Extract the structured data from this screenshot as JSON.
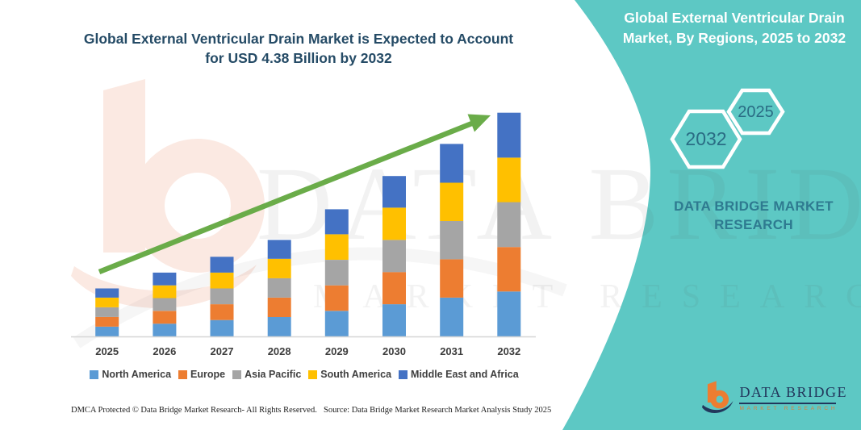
{
  "header": {
    "left_title": "Global External Ventricular Drain Market is Expected to Account for USD 4.38 Billion by 2032",
    "right_title": "Global External Ventricular Drain Market, By Regions, 2025 to 2032"
  },
  "side_panel": {
    "accent_teal": "#5dc8c4",
    "hexagons": [
      {
        "label": "2032"
      },
      {
        "label": "2025"
      }
    ],
    "brand_text": "DATA BRIDGE MARKET RESEARCH"
  },
  "chart_data": {
    "type": "bar",
    "stacked": true,
    "unit": "USD Billion",
    "categories": [
      "2025",
      "2026",
      "2027",
      "2028",
      "2029",
      "2030",
      "2031",
      "2032"
    ],
    "series": [
      {
        "name": "North America",
        "color": "#5B9BD5",
        "values": [
          0.19,
          0.25,
          0.32,
          0.38,
          0.5,
          0.63,
          0.76,
          0.88
        ]
      },
      {
        "name": "Europe",
        "color": "#ED7D31",
        "values": [
          0.19,
          0.25,
          0.31,
          0.38,
          0.5,
          0.63,
          0.75,
          0.87
        ]
      },
      {
        "name": "Asia Pacific",
        "color": "#A5A5A5",
        "values": [
          0.19,
          0.25,
          0.31,
          0.38,
          0.5,
          0.63,
          0.75,
          0.88
        ]
      },
      {
        "name": "South America",
        "color": "#FFC000",
        "values": [
          0.19,
          0.25,
          0.31,
          0.38,
          0.5,
          0.63,
          0.75,
          0.87
        ]
      },
      {
        "name": "Middle East and Africa",
        "color": "#4472C4",
        "values": [
          0.18,
          0.25,
          0.31,
          0.37,
          0.49,
          0.62,
          0.76,
          0.88
        ]
      }
    ],
    "totals": [
      0.94,
      1.25,
      1.56,
      1.89,
      2.49,
      3.14,
      3.77,
      4.38
    ],
    "highlight_value": "USD 4.38 Billion by 2032",
    "trend_arrow": true,
    "trend_arrow_color": "#6aac49",
    "axis_line_color": "#d6d6d6",
    "gridlines": false,
    "legend_position": "bottom"
  },
  "watermark": {
    "line1": "DATA BRIDGE",
    "line2": "MARKET RESEARCH"
  },
  "footer": {
    "dmca": "DMCA Protected © Data Bridge Market Research-  All Rights Reserved.",
    "source": "Source: Data Bridge Market Research  Market Analysis Study 2025"
  },
  "logo": {
    "name": "DATA BRIDGE",
    "tagline": "MARKET RESEARCH"
  }
}
